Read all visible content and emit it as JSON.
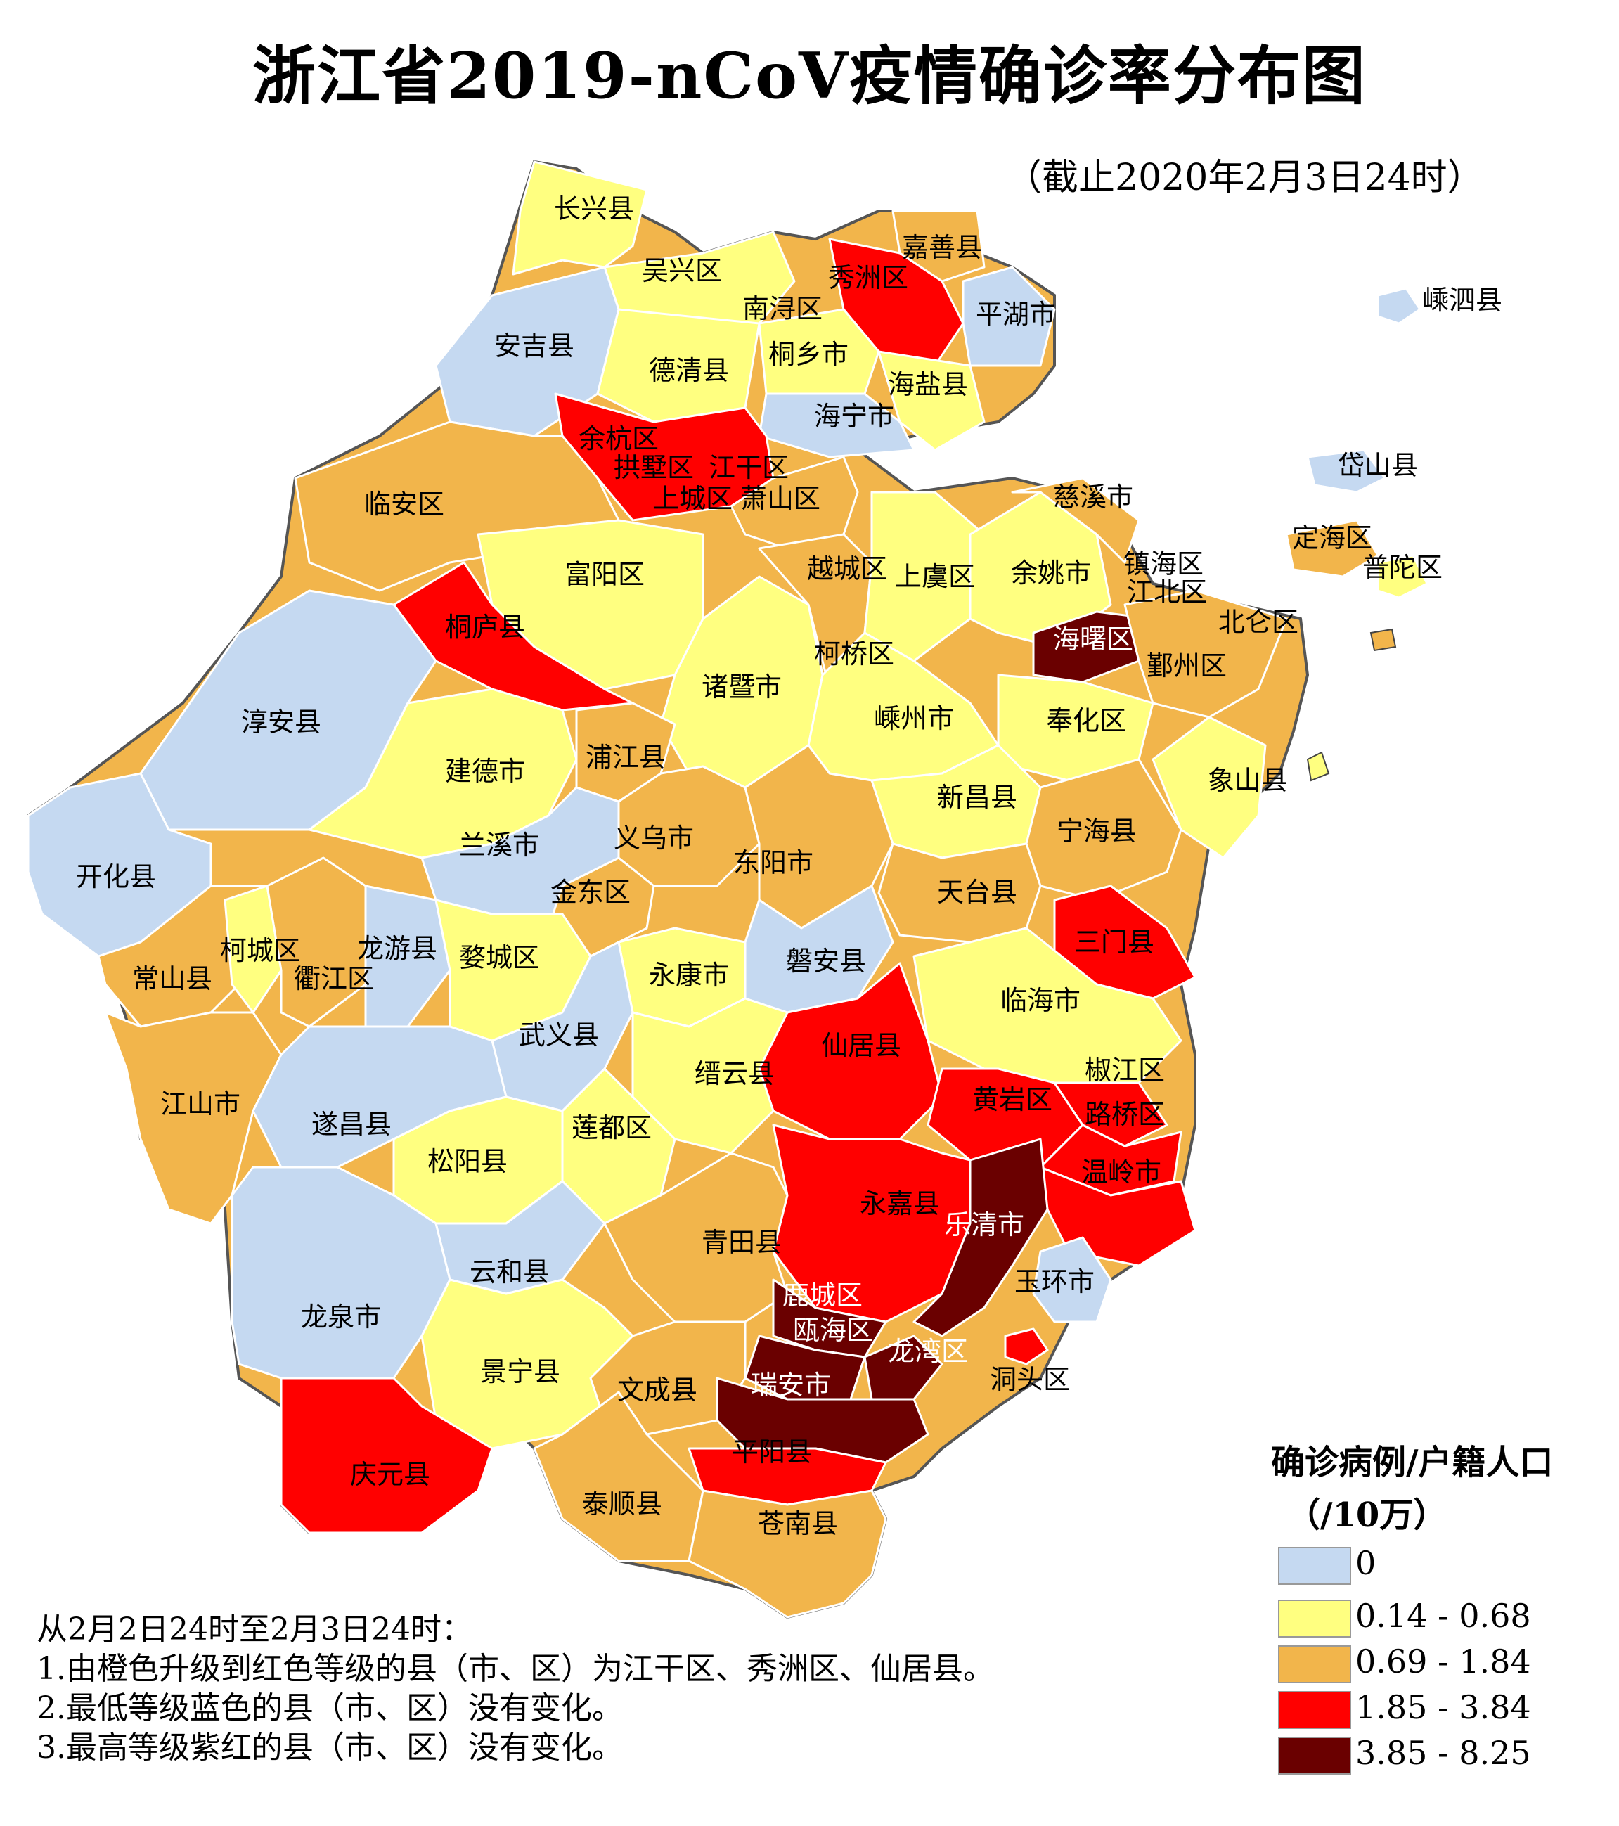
{
  "title": "浙江省2019-nCoV疫情确诊率分布图",
  "subtitle": "（截止2020年2月3日24时）",
  "legend": {
    "title_line1": "确诊病例/户籍人口",
    "title_line2": "（/10万）",
    "classes": [
      {
        "label": "0",
        "color": "#c5d9f1"
      },
      {
        "label": "0.14 - 0.68",
        "color": "#ffff80"
      },
      {
        "label": "0.69 - 1.84",
        "color": "#f2b54b"
      },
      {
        "label": "1.85 - 3.84",
        "color": "#ff0000"
      },
      {
        "label": "3.85 - 8.25",
        "color": "#6a0000"
      }
    ]
  },
  "notes": [
    "从2月2日24时至2月3日24时：",
    "1.由橙色升级到红色等级的县（市、区）为江干区、秀洲区、仙居县。",
    "2.最低等级蓝色的县（市、区）没有变化。",
    "3.最高等级紫红的县（市、区）没有变化。"
  ],
  "districts": [
    {
      "name": "长兴县",
      "class": 1
    },
    {
      "name": "吴兴区",
      "class": 1
    },
    {
      "name": "南浔区",
      "class": 1
    },
    {
      "name": "安吉县",
      "class": 0
    },
    {
      "name": "德清县",
      "class": 1
    },
    {
      "name": "嘉善县",
      "class": 2
    },
    {
      "name": "秀洲区",
      "class": 3
    },
    {
      "name": "平湖市",
      "class": 0
    },
    {
      "name": "桐乡市",
      "class": 1
    },
    {
      "name": "海盐县",
      "class": 1
    },
    {
      "name": "海宁市",
      "class": 0
    },
    {
      "name": "嵊泗县",
      "class": 0
    },
    {
      "name": "余杭区",
      "class": 3
    },
    {
      "name": "拱墅区",
      "class": 3
    },
    {
      "name": "江干区",
      "class": 3
    },
    {
      "name": "上城区",
      "class": 3
    },
    {
      "name": "萧山区",
      "class": 2
    },
    {
      "name": "临安区",
      "class": 2
    },
    {
      "name": "岱山县",
      "class": 0
    },
    {
      "name": "慈溪市",
      "class": 2
    },
    {
      "name": "定海区",
      "class": 2
    },
    {
      "name": "普陀区",
      "class": 1
    },
    {
      "name": "越城区",
      "class": 2
    },
    {
      "name": "上虞区",
      "class": 1
    },
    {
      "name": "余姚市",
      "class": 1
    },
    {
      "name": "镇海区",
      "class": 2
    },
    {
      "name": "江北区",
      "class": 2
    },
    {
      "name": "富阳区",
      "class": 1
    },
    {
      "name": "桐庐县",
      "class": 3
    },
    {
      "name": "海曙区",
      "class": 4
    },
    {
      "name": "北仑区",
      "class": 2
    },
    {
      "name": "鄞州区",
      "class": 2
    },
    {
      "name": "柯桥区",
      "class": 2
    },
    {
      "name": "诸暨市",
      "class": 1
    },
    {
      "name": "淳安县",
      "class": 0
    },
    {
      "name": "嵊州市",
      "class": 1
    },
    {
      "name": "奉化区",
      "class": 1
    },
    {
      "name": "浦江县",
      "class": 2
    },
    {
      "name": "建德市",
      "class": 1
    },
    {
      "name": "象山县",
      "class": 1
    },
    {
      "name": "新昌县",
      "class": 1
    },
    {
      "name": "义乌市",
      "class": 2
    },
    {
      "name": "宁海县",
      "class": 2
    },
    {
      "name": "兰溪市",
      "class": 0
    },
    {
      "name": "东阳市",
      "class": 2
    },
    {
      "name": "开化县",
      "class": 0
    },
    {
      "name": "金东区",
      "class": 2
    },
    {
      "name": "天台县",
      "class": 2
    },
    {
      "name": "柯城区",
      "class": 1
    },
    {
      "name": "龙游县",
      "class": 0
    },
    {
      "name": "三门县",
      "class": 3
    },
    {
      "name": "常山县",
      "class": 2
    },
    {
      "name": "衢江区",
      "class": 2
    },
    {
      "name": "婺城区",
      "class": 1
    },
    {
      "name": "磐安县",
      "class": 0
    },
    {
      "name": "永康市",
      "class": 1
    },
    {
      "name": "临海市",
      "class": 1
    },
    {
      "name": "武义县",
      "class": 0
    },
    {
      "name": "仙居县",
      "class": 3
    },
    {
      "name": "缙云县",
      "class": 1
    },
    {
      "name": "椒江区",
      "class": 3
    },
    {
      "name": "江山市",
      "class": 2
    },
    {
      "name": "黄岩区",
      "class": 3
    },
    {
      "name": "遂昌县",
      "class": 0
    },
    {
      "name": "莲都区",
      "class": 1
    },
    {
      "name": "路桥区",
      "class": 3
    },
    {
      "name": "松阳县",
      "class": 1
    },
    {
      "name": "温岭市",
      "class": 3
    },
    {
      "name": "永嘉县",
      "class": 3
    },
    {
      "name": "乐清市",
      "class": 4
    },
    {
      "name": "青田县",
      "class": 2
    },
    {
      "name": "云和县",
      "class": 0
    },
    {
      "name": "玉环市",
      "class": 0
    },
    {
      "name": "龙泉市",
      "class": 0
    },
    {
      "name": "鹿城区",
      "class": 4
    },
    {
      "name": "瓯海区",
      "class": 4
    },
    {
      "name": "龙湾区",
      "class": 4
    },
    {
      "name": "洞头区",
      "class": 3
    },
    {
      "name": "景宁县",
      "class": 1
    },
    {
      "name": "文成县",
      "class": 2
    },
    {
      "name": "瑞安市",
      "class": 4
    },
    {
      "name": "平阳县",
      "class": 3
    },
    {
      "name": "庆元县",
      "class": 3
    },
    {
      "name": "泰顺县",
      "class": 2
    },
    {
      "name": "苍南县",
      "class": 2
    }
  ]
}
